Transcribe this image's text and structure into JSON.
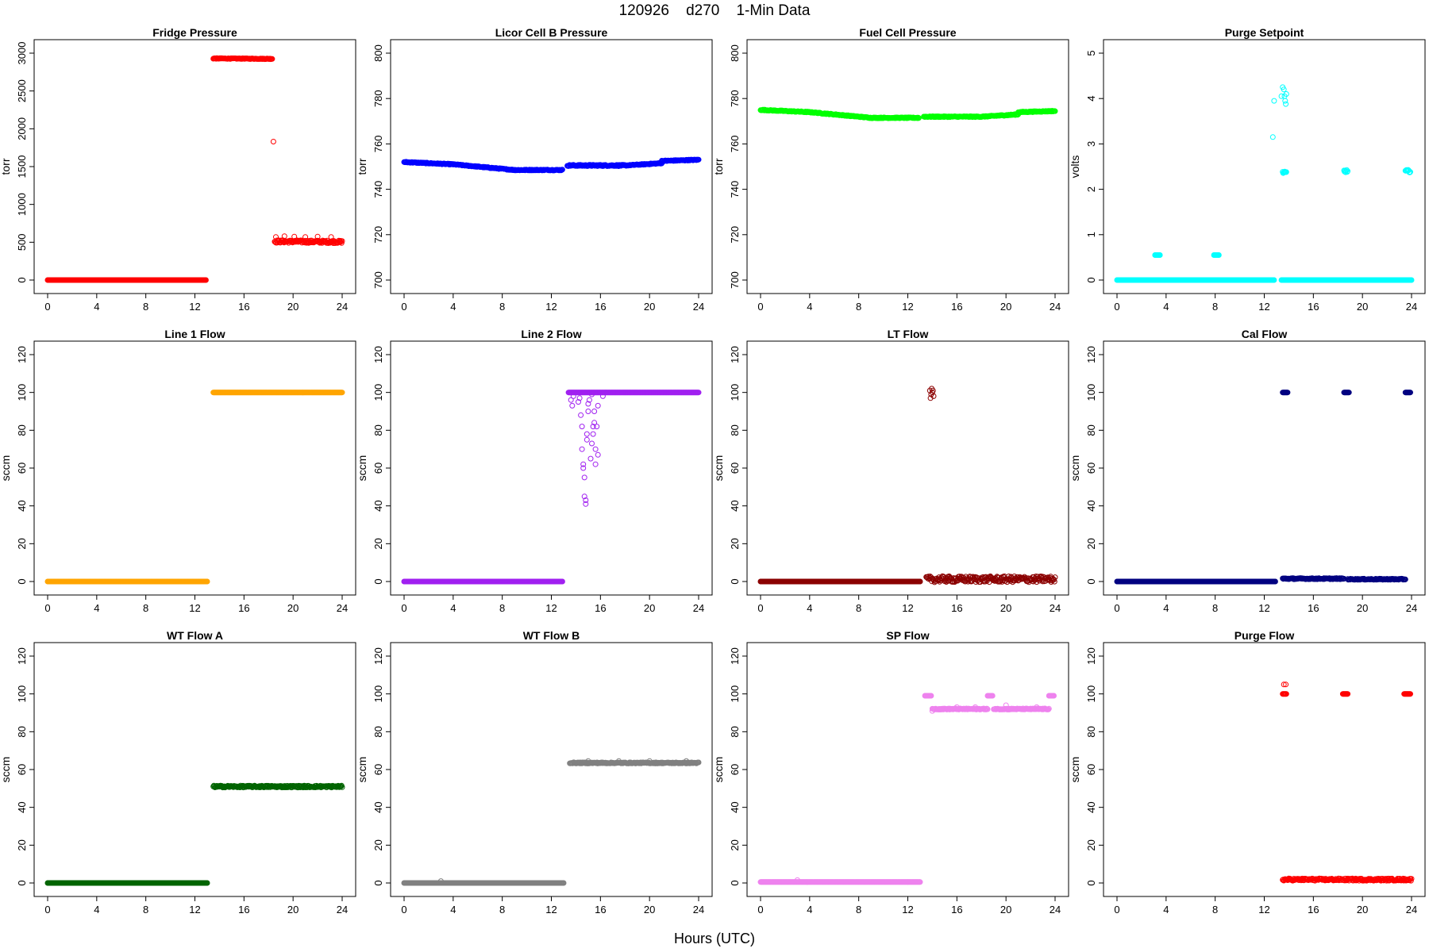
{
  "figure": {
    "title": "120926    d270    1-Min Data",
    "xlabel": "Hours (UTC)"
  },
  "chart_data": [
    {
      "type": "scatter",
      "title": "Fridge Pressure",
      "ylabel": "torr",
      "color": "#ff0000",
      "xlim": [
        0,
        24
      ],
      "ylim": [
        0,
        3000
      ],
      "xticks": [
        0,
        4,
        8,
        12,
        16,
        20,
        24
      ],
      "yticks": [
        0,
        500,
        1000,
        1500,
        2000,
        2500,
        3000
      ],
      "segments": [
        {
          "x0": 0.0,
          "x1": 12.9,
          "y0": 0,
          "y1": 0,
          "noise": 0
        },
        {
          "x0": 13.5,
          "x1": 18.3,
          "y0": 2930,
          "y1": 2925,
          "noise": 5
        },
        {
          "x0": 18.5,
          "x1": 24.0,
          "y0": 510,
          "y1": 505,
          "noise": 18
        }
      ],
      "points": [
        [
          18.4,
          1830
        ],
        [
          18.6,
          570
        ],
        [
          19.3,
          580
        ],
        [
          20.1,
          575
        ],
        [
          21.0,
          570
        ],
        [
          22.0,
          575
        ],
        [
          23.1,
          570
        ]
      ]
    },
    {
      "type": "scatter",
      "title": "Licor Cell B Pressure",
      "ylabel": "torr",
      "color": "#0000ff",
      "xlim": [
        0,
        24
      ],
      "ylim": [
        700,
        800
      ],
      "xticks": [
        0,
        4,
        8,
        12,
        16,
        20,
        24
      ],
      "yticks": [
        700,
        720,
        740,
        760,
        780,
        800
      ],
      "segments": [
        {
          "x0": 0.0,
          "x1": 4.0,
          "y0": 752,
          "y1": 751,
          "noise": 0.2
        },
        {
          "x0": 4.0,
          "x1": 9.0,
          "y0": 751,
          "y1": 748.5,
          "noise": 0.2
        },
        {
          "x0": 9.0,
          "x1": 12.9,
          "y0": 748.5,
          "y1": 748.5,
          "noise": 0.2
        },
        {
          "x0": 13.3,
          "x1": 18.0,
          "y0": 750.5,
          "y1": 750.5,
          "noise": 0.3
        },
        {
          "x0": 18.0,
          "x1": 21.0,
          "y0": 750.5,
          "y1": 751.5,
          "noise": 0.2
        },
        {
          "x0": 21.0,
          "x1": 24.0,
          "y0": 752.5,
          "y1": 753,
          "noise": 0.2
        }
      ],
      "points": []
    },
    {
      "type": "scatter",
      "title": "Fuel Cell Pressure",
      "ylabel": "torr",
      "color": "#00ff00",
      "xlim": [
        0,
        24
      ],
      "ylim": [
        700,
        800
      ],
      "xticks": [
        0,
        4,
        8,
        12,
        16,
        20,
        24
      ],
      "yticks": [
        700,
        720,
        740,
        760,
        780,
        800
      ],
      "segments": [
        {
          "x0": 0.0,
          "x1": 4.0,
          "y0": 775,
          "y1": 774,
          "noise": 0.2
        },
        {
          "x0": 4.0,
          "x1": 9.0,
          "y0": 774,
          "y1": 771.5,
          "noise": 0.2
        },
        {
          "x0": 9.0,
          "x1": 12.9,
          "y0": 771.5,
          "y1": 771.5,
          "noise": 0.2
        },
        {
          "x0": 13.3,
          "x1": 18.0,
          "y0": 772,
          "y1": 772,
          "noise": 0.2
        },
        {
          "x0": 18.0,
          "x1": 21.0,
          "y0": 772,
          "y1": 773,
          "noise": 0.2
        },
        {
          "x0": 21.0,
          "x1": 24.0,
          "y0": 774,
          "y1": 774.5,
          "noise": 0.2
        }
      ],
      "points": []
    },
    {
      "type": "scatter",
      "title": "Purge Setpoint",
      "ylabel": "volts",
      "color": "#00ffff",
      "xlim": [
        0,
        24
      ],
      "ylim": [
        0,
        5
      ],
      "xticks": [
        0,
        4,
        8,
        12,
        16,
        20,
        24
      ],
      "yticks": [
        0,
        1,
        2,
        3,
        4,
        5
      ],
      "segments": [
        {
          "x0": 0.0,
          "x1": 12.8,
          "y0": 0,
          "y1": 0,
          "noise": 0
        },
        {
          "x0": 13.4,
          "x1": 24.0,
          "y0": 0,
          "y1": 0,
          "noise": 0
        },
        {
          "x0": 3.1,
          "x1": 3.5,
          "y0": 0.55,
          "y1": 0.55,
          "noise": 0
        },
        {
          "x0": 7.9,
          "x1": 8.3,
          "y0": 0.55,
          "y1": 0.55,
          "noise": 0
        },
        {
          "x0": 13.5,
          "x1": 13.8,
          "y0": 2.37,
          "y1": 2.37,
          "noise": 0.02
        },
        {
          "x0": 18.5,
          "x1": 18.8,
          "y0": 2.4,
          "y1": 2.4,
          "noise": 0.03
        },
        {
          "x0": 23.5,
          "x1": 23.9,
          "y0": 2.4,
          "y1": 2.4,
          "noise": 0.03
        }
      ],
      "points": [
        [
          12.7,
          3.15
        ],
        [
          12.8,
          3.95
        ],
        [
          13.4,
          4.05
        ],
        [
          13.5,
          4.25
        ],
        [
          13.6,
          4.2
        ],
        [
          13.65,
          4.05
        ],
        [
          13.7,
          3.95
        ],
        [
          13.75,
          3.88
        ],
        [
          13.8,
          4.1
        ]
      ]
    },
    {
      "type": "scatter",
      "title": "Line 1 Flow",
      "ylabel": "sccm",
      "color": "#ffa500",
      "xlim": [
        0,
        24
      ],
      "ylim": [
        0,
        120
      ],
      "xticks": [
        0,
        4,
        8,
        12,
        16,
        20,
        24
      ],
      "yticks": [
        0,
        20,
        40,
        60,
        80,
        100,
        120
      ],
      "segments": [
        {
          "x0": 0.0,
          "x1": 13.0,
          "y0": 0,
          "y1": 0,
          "noise": 0
        },
        {
          "x0": 13.5,
          "x1": 24.0,
          "y0": 100,
          "y1": 100,
          "noise": 0
        }
      ],
      "points": []
    },
    {
      "type": "scatter",
      "title": "Line 2 Flow",
      "ylabel": "sccm",
      "color": "#a020f0",
      "xlim": [
        0,
        24
      ],
      "ylim": [
        0,
        120
      ],
      "xticks": [
        0,
        4,
        8,
        12,
        16,
        20,
        24
      ],
      "yticks": [
        0,
        20,
        40,
        60,
        80,
        100,
        120
      ],
      "segments": [
        {
          "x0": 0.0,
          "x1": 12.9,
          "y0": 0,
          "y1": 0,
          "noise": 0
        },
        {
          "x0": 13.4,
          "x1": 24.0,
          "y0": 100,
          "y1": 100,
          "noise": 0
        }
      ],
      "points": [
        [
          13.6,
          96
        ],
        [
          13.7,
          93
        ],
        [
          13.8,
          98
        ],
        [
          14.3,
          97
        ],
        [
          14.4,
          88
        ],
        [
          14.5,
          82
        ],
        [
          14.5,
          70
        ],
        [
          14.6,
          62
        ],
        [
          14.6,
          60
        ],
        [
          14.7,
          55
        ],
        [
          14.7,
          45
        ],
        [
          14.8,
          43
        ],
        [
          14.8,
          41
        ],
        [
          14.9,
          75
        ],
        [
          14.9,
          78
        ],
        [
          15.0,
          90
        ],
        [
          15.0,
          94
        ],
        [
          15.1,
          96
        ],
        [
          15.2,
          65
        ],
        [
          15.3,
          73
        ],
        [
          15.4,
          82
        ],
        [
          15.4,
          78
        ],
        [
          15.5,
          90
        ],
        [
          15.5,
          84
        ],
        [
          15.6,
          70
        ],
        [
          15.6,
          62
        ],
        [
          15.7,
          82
        ],
        [
          15.8,
          93
        ],
        [
          15.8,
          67
        ],
        [
          16.2,
          98
        ],
        [
          14.2,
          95
        ],
        [
          15.3,
          99
        ]
      ]
    },
    {
      "type": "scatter",
      "title": "LT Flow",
      "ylabel": "sccm",
      "color": "#8b0000",
      "xlim": [
        0,
        24
      ],
      "ylim": [
        0,
        120
      ],
      "xticks": [
        0,
        4,
        8,
        12,
        16,
        20,
        24
      ],
      "yticks": [
        0,
        20,
        40,
        60,
        80,
        100,
        120
      ],
      "segments": [
        {
          "x0": 0.0,
          "x1": 13.0,
          "y0": 0,
          "y1": 0,
          "noise": 0
        },
        {
          "x0": 13.5,
          "x1": 24.0,
          "y0": 1.2,
          "y1": 1.2,
          "noise": 1.6
        }
      ],
      "points": [
        [
          13.8,
          101
        ],
        [
          13.9,
          99
        ],
        [
          14.0,
          100
        ],
        [
          14.1,
          98
        ],
        [
          13.85,
          97
        ],
        [
          14.05,
          101
        ],
        [
          13.95,
          102
        ]
      ]
    },
    {
      "type": "scatter",
      "title": "Cal Flow",
      "ylabel": "sccm",
      "color": "#000080",
      "xlim": [
        0,
        24
      ],
      "ylim": [
        0,
        120
      ],
      "xticks": [
        0,
        4,
        8,
        12,
        16,
        20,
        24
      ],
      "yticks": [
        0,
        20,
        40,
        60,
        80,
        100,
        120
      ],
      "segments": [
        {
          "x0": 0.0,
          "x1": 12.9,
          "y0": 0,
          "y1": 0,
          "noise": 0
        },
        {
          "x0": 13.5,
          "x1": 18.5,
          "y0": 1.5,
          "y1": 1.5,
          "noise": 0.3
        },
        {
          "x0": 18.8,
          "x1": 23.5,
          "y0": 1.2,
          "y1": 1.2,
          "noise": 0.3
        },
        {
          "x0": 13.5,
          "x1": 13.9,
          "y0": 100,
          "y1": 100,
          "noise": 0
        },
        {
          "x0": 18.5,
          "x1": 18.9,
          "y0": 100,
          "y1": 100,
          "noise": 0
        },
        {
          "x0": 23.5,
          "x1": 23.9,
          "y0": 100,
          "y1": 100,
          "noise": 0
        }
      ],
      "points": []
    },
    {
      "type": "scatter",
      "title": "WT Flow A",
      "ylabel": "sccm",
      "color": "#006400",
      "xlim": [
        0,
        24
      ],
      "ylim": [
        0,
        120
      ],
      "xticks": [
        0,
        4,
        8,
        12,
        16,
        20,
        24
      ],
      "yticks": [
        0,
        20,
        40,
        60,
        80,
        100,
        120
      ],
      "segments": [
        {
          "x0": 0.0,
          "x1": 13.0,
          "y0": 0,
          "y1": 0,
          "noise": 0
        },
        {
          "x0": 13.5,
          "x1": 24.0,
          "y0": 51,
          "y1": 51,
          "noise": 0.5
        }
      ],
      "points": []
    },
    {
      "type": "scatter",
      "title": "WT Flow B",
      "ylabel": "sccm",
      "color": "#808080",
      "xlim": [
        0,
        24
      ],
      "ylim": [
        0,
        120
      ],
      "xticks": [
        0,
        4,
        8,
        12,
        16,
        20,
        24
      ],
      "yticks": [
        0,
        20,
        40,
        60,
        80,
        100,
        120
      ],
      "segments": [
        {
          "x0": 0.0,
          "x1": 13.0,
          "y0": 0,
          "y1": 0,
          "noise": 0
        },
        {
          "x0": 13.5,
          "x1": 24.0,
          "y0": 63.5,
          "y1": 63.5,
          "noise": 0.3
        }
      ],
      "points": [
        [
          3.0,
          1.0
        ],
        [
          15.0,
          64.5
        ],
        [
          17.5,
          64.5
        ],
        [
          20.0,
          64.5
        ],
        [
          23.0,
          64.5
        ]
      ]
    },
    {
      "type": "scatter",
      "title": "SP Flow",
      "ylabel": "sccm",
      "color": "#ee82ee",
      "xlim": [
        0,
        24
      ],
      "ylim": [
        0,
        120
      ],
      "xticks": [
        0,
        4,
        8,
        12,
        16,
        20,
        24
      ],
      "yticks": [
        0,
        20,
        40,
        60,
        80,
        100,
        120
      ],
      "segments": [
        {
          "x0": 0.0,
          "x1": 13.0,
          "y0": 0.5,
          "y1": 0.5,
          "noise": 0
        },
        {
          "x0": 13.4,
          "x1": 13.9,
          "y0": 99,
          "y1": 99,
          "noise": 0
        },
        {
          "x0": 14.0,
          "x1": 18.5,
          "y0": 92,
          "y1": 92,
          "noise": 0.3
        },
        {
          "x0": 18.5,
          "x1": 18.9,
          "y0": 99,
          "y1": 99,
          "noise": 0
        },
        {
          "x0": 19.0,
          "x1": 23.5,
          "y0": 92,
          "y1": 92,
          "noise": 0.3
        },
        {
          "x0": 23.5,
          "x1": 23.9,
          "y0": 99,
          "y1": 99,
          "noise": 0
        }
      ],
      "points": [
        [
          3.0,
          1.5
        ],
        [
          14.0,
          91
        ],
        [
          16.0,
          93
        ],
        [
          17.5,
          93
        ],
        [
          20.0,
          94
        ],
        [
          22.5,
          93
        ]
      ]
    },
    {
      "type": "scatter",
      "title": "Purge Flow",
      "ylabel": "sccm",
      "color": "#ff0000",
      "xlim": [
        0,
        24
      ],
      "ylim": [
        0,
        120
      ],
      "xticks": [
        0,
        4,
        8,
        12,
        16,
        20,
        24
      ],
      "yticks": [
        0,
        20,
        40,
        60,
        80,
        100,
        120
      ],
      "segments": [
        {
          "x0": 13.5,
          "x1": 24.0,
          "y0": 1.8,
          "y1": 1.8,
          "noise": 0.6
        },
        {
          "x0": 13.5,
          "x1": 13.8,
          "y0": 100,
          "y1": 100,
          "noise": 0
        },
        {
          "x0": 18.4,
          "x1": 18.8,
          "y0": 100,
          "y1": 100,
          "noise": 0
        },
        {
          "x0": 23.4,
          "x1": 23.9,
          "y0": 100,
          "y1": 100,
          "noise": 0
        }
      ],
      "points": [
        [
          13.6,
          105
        ],
        [
          13.75,
          105
        ]
      ]
    }
  ]
}
